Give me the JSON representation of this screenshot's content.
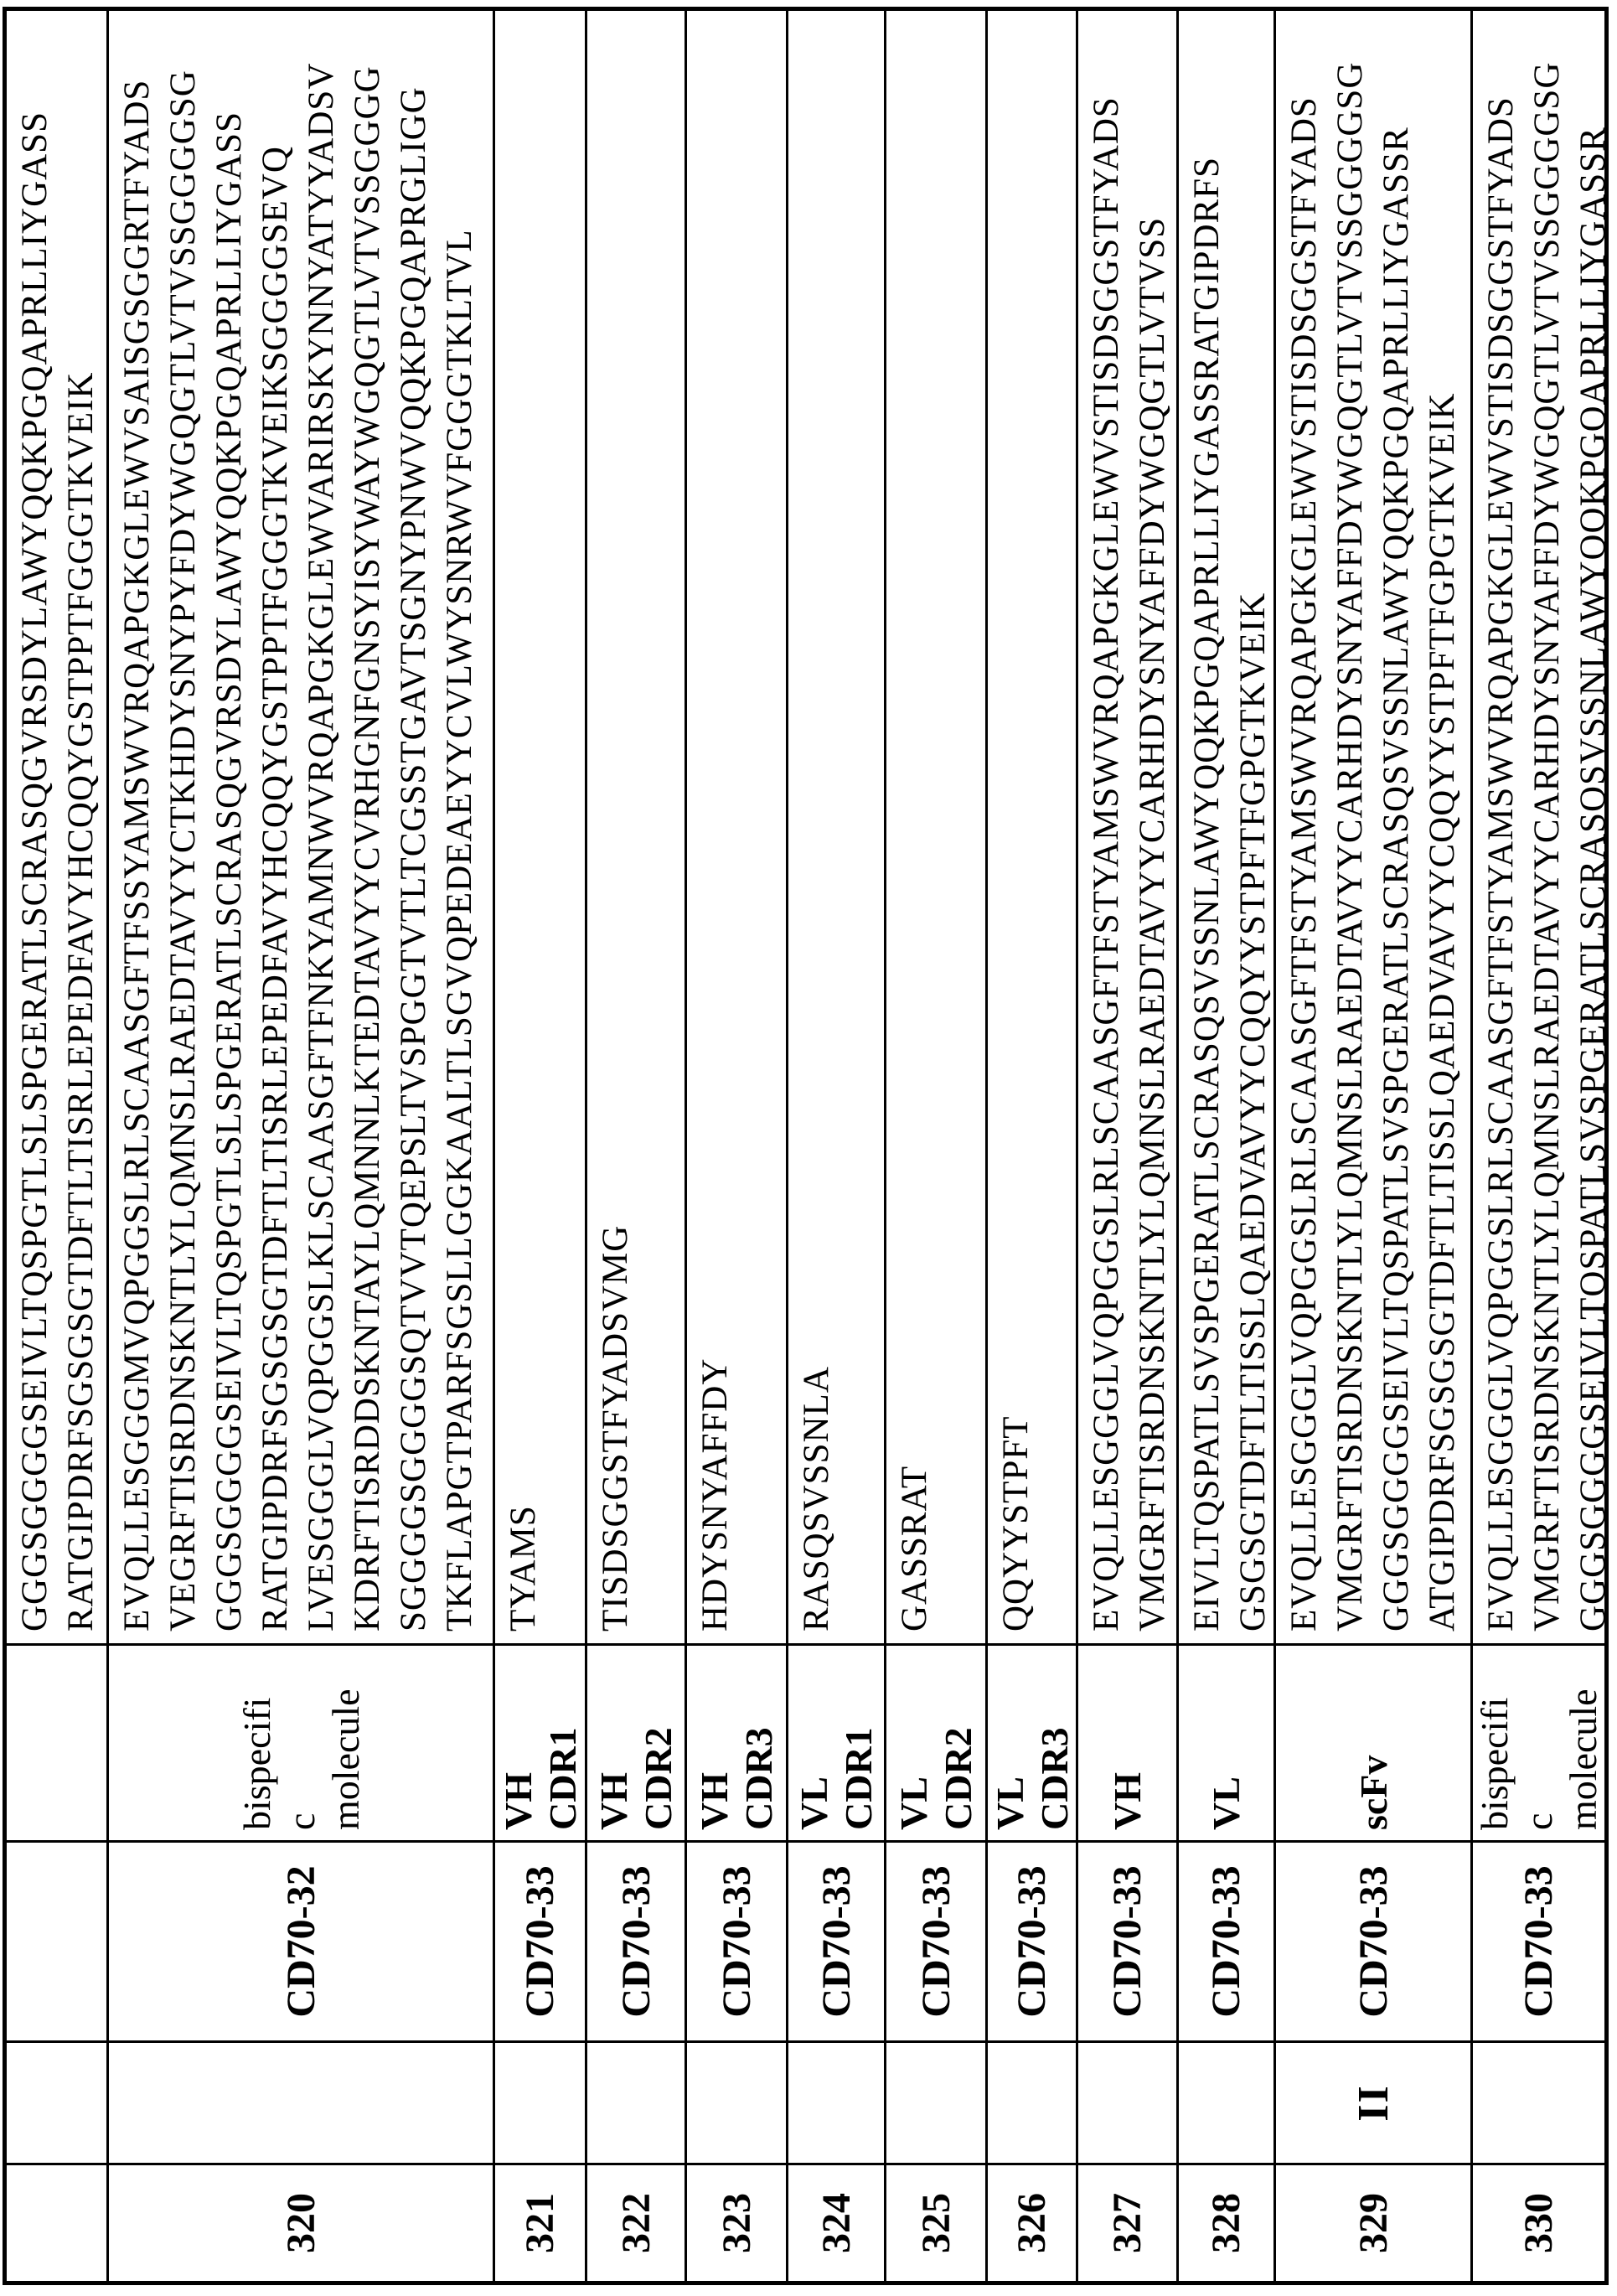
{
  "document": {
    "kind": "patent sequence listing table page",
    "group_marker": "II"
  },
  "table": {
    "rows": [
      {
        "seq_id": "",
        "group": "",
        "antibody": "",
        "region": "",
        "sequence_lines": [
          "GGGSGGGGSEIVLTQSPGTLSLSPGERATLSCRASQGVRSDYLAWYQQKPGQAPRLLIYGASS",
          "RATGIPDRFSGSGSGTDFTLTISRLEPEDFAVYHCQQYGSTPPTFGGGTKVEIK"
        ]
      },
      {
        "seq_id": "320",
        "group": "",
        "antibody": "CD70-32",
        "region": "bispecifi\nc\nmolecule",
        "sequence_lines": [
          "EVQLLESGGGMVQPGGSLRLSCAASGFTFSSYAMSWVRQAPGKGLEWVSAISGSGGRTFYADS",
          "VEGRFTISRDNSKNTLYLQMNSLRAEDTAVYYCTKHDYSNYPYFDYWGQGTLVTVSSGGGGSG",
          "GGGSGGGGSEIVLTQSPGTLSLSPGERATLSCRASQGVRSDYLAWYQQKPGQAPRLLIYGASS",
          "RATGIPDRFSGSGSGTDFTLTISRLEPEDFAVYHCQQYGSTPPTFGGGTKVEIKSGGGGSEVQ",
          "LVESGGGLVQPGGSLKLSCAASGFTFNKYAMNWVRQAPGKGLEWVARIRSKYNNYATYYADSV",
          "KDRFTISRDDSKNTAYLQMNNLKTEDTAVYYCVRHGNFGNSYISYWAYWGQGTLVTVSSGGGG",
          "SGGGGSGGGGSQTVVTQEPSLTVSPGGTVTLTCGSSTGAVTSGNYPNWVQQKPGQAPRGLIGG",
          "TKFLAPGTPARFSGSLLGGKAALTLSGVQPEDEAEYYCVLWYSNRWVFGGGTKLTVL"
        ]
      },
      {
        "seq_id": "321",
        "group": "",
        "antibody": "CD70-33",
        "region": "VH\nCDR1",
        "sequence_lines": [
          "TYAMS"
        ]
      },
      {
        "seq_id": "322",
        "group": "",
        "antibody": "CD70-33",
        "region": "VH\nCDR2",
        "sequence_lines": [
          "TISDSGGSTFYADSVMG"
        ]
      },
      {
        "seq_id": "323",
        "group": "",
        "antibody": "CD70-33",
        "region": "VH\nCDR3",
        "sequence_lines": [
          "HDYSNYAFFDY"
        ]
      },
      {
        "seq_id": "324",
        "group": "",
        "antibody": "CD70-33",
        "region": "VL\nCDR1",
        "sequence_lines": [
          "RASQSVSSNLA"
        ]
      },
      {
        "seq_id": "325",
        "group": "",
        "antibody": "CD70-33",
        "region": "VL\nCDR2",
        "sequence_lines": [
          "GASSRAT"
        ]
      },
      {
        "seq_id": "326",
        "group": "",
        "antibody": "CD70-33",
        "region": "VL\nCDR3",
        "sequence_lines": [
          "QQYYSTPFT"
        ]
      },
      {
        "seq_id": "327",
        "group": "",
        "antibody": "CD70-33",
        "region": "VH",
        "sequence_lines": [
          "EVQLLESGGGLVQPGGSLRLSCAASGFTFSTYAMSWVRQAPGKGLEWVSTISDSGGSTFYADS",
          "VMGRFTISRDNSKNTLYLQMNSLRAEDTAVYYCARHDYSNYAFFDYWGQGTLVTVSS"
        ]
      },
      {
        "seq_id": "328",
        "group": "",
        "antibody": "CD70-33",
        "region": "VL",
        "sequence_lines": [
          "EIVLTQSPATLSVSPGERATLSCRASQSVSSNLAWYQQKPGQAPRLLIYGASSRATGIPDRFS",
          "GSGSGTDFTLTISSLQAEDVAVYYCQQYYSTPFTFGPGTKVEIK"
        ]
      },
      {
        "seq_id": "329",
        "group": "II",
        "antibody": "CD70-33",
        "region": "scFv",
        "sequence_lines": [
          "EVQLLESGGGLVQPGGSLRLSCAASGFTFSTYAMSWVRQAPGKGLEWVSTISDSGGSTFYADS",
          "VMGRFTISRDNSKNTLYLQMNSLRAEDTAVYYCARHDYSNYAFFDYWGQGTLVTVSSGGGGSG",
          "GGGSGGGGSEIVLTQSPATLSVSPGERATLSCRASQSVSSNLAWYQQKPGQAPRLLIYGASSR",
          "ATGIPDRFSGSGSGTDFTLTISSLQAEDVAVYYCQQYYSTPFTFGPGTKVEIK"
        ]
      },
      {
        "seq_id": "330",
        "group": "",
        "antibody": "CD70-33",
        "region": "bispecifi\nc\nmolecule",
        "sequence_lines": [
          "EVQLLESGGGLVQPGGSLRLSCAASGFTFSTYAMSWVRQAPGKGLEWVSTISDSGGSTFYADS",
          "VMGRFTISRDNSKNTLYLQMNSLRAEDTAVYYCARHDYSNYAFFDYWGQGTLVTVSSGGGGSG",
          "GGGSGGGGSEIVLTQSPATLSVSPGERATLSCRASQSVSSNLAWYQQKPGQAPRLLIYGASSR"
        ]
      }
    ]
  }
}
